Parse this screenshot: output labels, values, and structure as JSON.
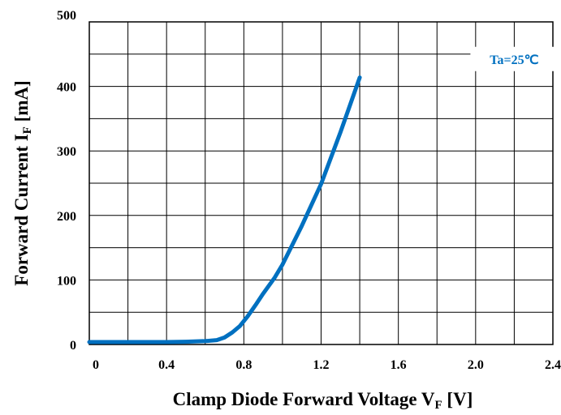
{
  "colors": {
    "curve": "#0070c0",
    "annotation": "#0070c0",
    "grid": "#000000"
  },
  "chart_data": {
    "type": "line",
    "title": "",
    "xlabel_main": "Clamp Diode Forward Voltage V",
    "xlabel_sub": "F",
    "xlabel_unit": " [V]",
    "ylabel_main": "Forward Current I",
    "ylabel_sub": "F",
    "ylabel_unit": " [mA]",
    "xlim": [
      0,
      2.4
    ],
    "ylim": [
      0,
      500
    ],
    "x_major_ticks": [
      0,
      0.4,
      0.8,
      1.2,
      1.6,
      2.0,
      2.4
    ],
    "x_tick_labels": [
      "0",
      "0.4",
      "0.8",
      "1.2",
      "1.6",
      "2.0",
      "2.4"
    ],
    "x_minor_step": 0.2,
    "y_major_ticks": [
      0,
      100,
      200,
      300,
      400,
      500
    ],
    "y_tick_labels": [
      "0",
      "100",
      "200",
      "300",
      "400",
      "500"
    ],
    "y_minor_step": 50,
    "grid": true,
    "annotation": "Ta=25℃",
    "series": [
      {
        "x": [
          0,
          0.2,
          0.4,
          0.5,
          0.6,
          0.66,
          0.7,
          0.74,
          0.78,
          0.82,
          0.86,
          0.9,
          0.96,
          1.0,
          1.1,
          1.2,
          1.3,
          1.4
        ],
        "y": [
          0,
          0,
          0,
          0.5,
          1.5,
          3,
          7,
          15,
          25,
          40,
          57,
          75,
          100,
          120,
          180,
          245,
          325,
          410
        ]
      }
    ]
  }
}
